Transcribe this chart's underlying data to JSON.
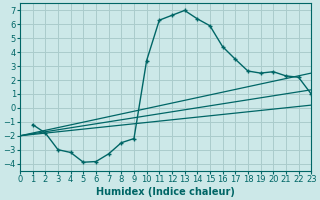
{
  "xlabel": "Humidex (Indice chaleur)",
  "ylabel": "",
  "background_color": "#cce8e8",
  "grid_color": "#aacccc",
  "line_color": "#006666",
  "xlim": [
    0,
    23
  ],
  "ylim": [
    -4.5,
    7.5
  ],
  "xticks": [
    0,
    1,
    2,
    3,
    4,
    5,
    6,
    7,
    8,
    9,
    10,
    11,
    12,
    13,
    14,
    15,
    16,
    17,
    18,
    19,
    20,
    21,
    22,
    23
  ],
  "yticks": [
    -4,
    -3,
    -2,
    -1,
    0,
    1,
    2,
    3,
    4,
    5,
    6,
    7
  ],
  "curve1_x": [
    1,
    2,
    3,
    4,
    5,
    6,
    7,
    8,
    9,
    10,
    11,
    12,
    13,
    14,
    15,
    16,
    17,
    18,
    19,
    20,
    21,
    22,
    23
  ],
  "curve1_y": [
    -1.2,
    -1.8,
    -3.0,
    -3.2,
    -3.9,
    -3.85,
    -3.3,
    -2.5,
    -2.2,
    3.4,
    6.3,
    6.65,
    7.0,
    6.4,
    5.9,
    4.4,
    3.5,
    2.65,
    2.5,
    2.6,
    2.3,
    2.2,
    1.0
  ],
  "curve2_x": [
    0,
    23
  ],
  "curve2_y": [
    -2.0,
    2.5
  ],
  "curve3_x": [
    0,
    23
  ],
  "curve3_y": [
    -2.0,
    1.3
  ],
  "curve4_x": [
    0,
    23
  ],
  "curve4_y": [
    -2.0,
    0.2
  ],
  "xlabel_fontsize": 7,
  "tick_fontsize": 6
}
